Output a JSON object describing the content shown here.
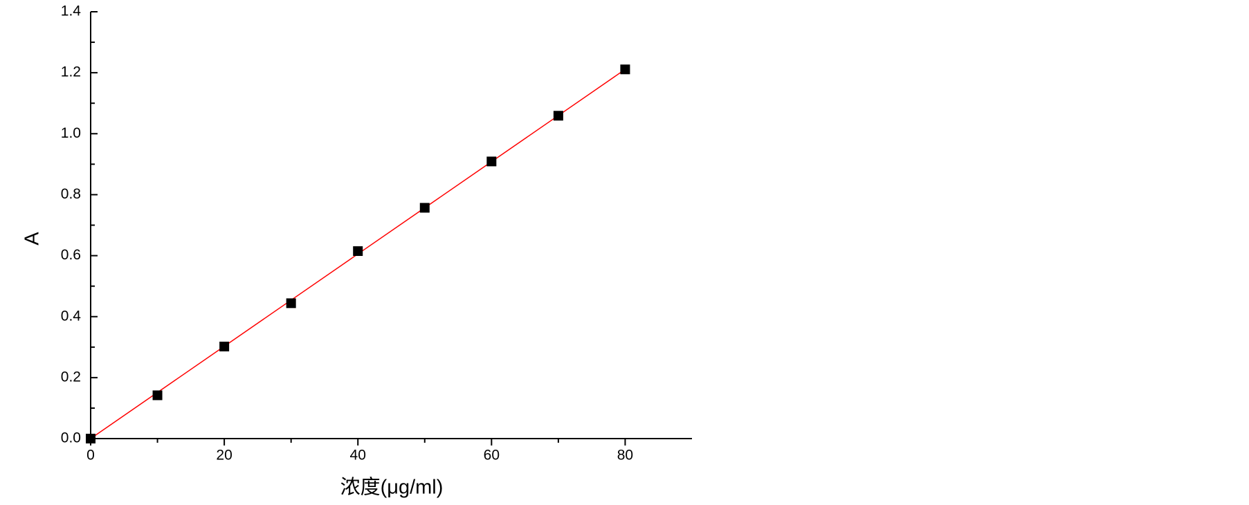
{
  "chart_data": {
    "type": "scatter",
    "x_label": "浓度(μg/ml)",
    "y_label": "A",
    "series": [
      {
        "x": [
          0,
          10,
          20,
          30,
          40,
          50,
          60,
          70,
          80
        ],
        "values": [
          0,
          0.142,
          0.302,
          0.444,
          0.615,
          0.757,
          0.909,
          1.059,
          1.211
        ],
        "color": "#000000"
      }
    ],
    "fit": {
      "x": [
        0,
        80
      ],
      "values": [
        0,
        1.211
      ],
      "color": "#ff0000"
    },
    "xlim": [
      0,
      90
    ],
    "ylim": [
      0,
      1.4
    ],
    "xticks": [
      0,
      20,
      40,
      60,
      80
    ],
    "yticks": [
      {
        "value": 0,
        "label": "0.0"
      },
      0.2,
      0.4,
      0.6,
      0.8,
      {
        "value": 1,
        "label": "1.0"
      },
      1.2,
      1.4
    ],
    "xminorticks": [
      10,
      30,
      50,
      70
    ],
    "yminorticks": [
      0.1,
      0.3,
      0.5,
      0.7,
      0.9,
      1.1,
      1.3
    ],
    "grid": false
  }
}
